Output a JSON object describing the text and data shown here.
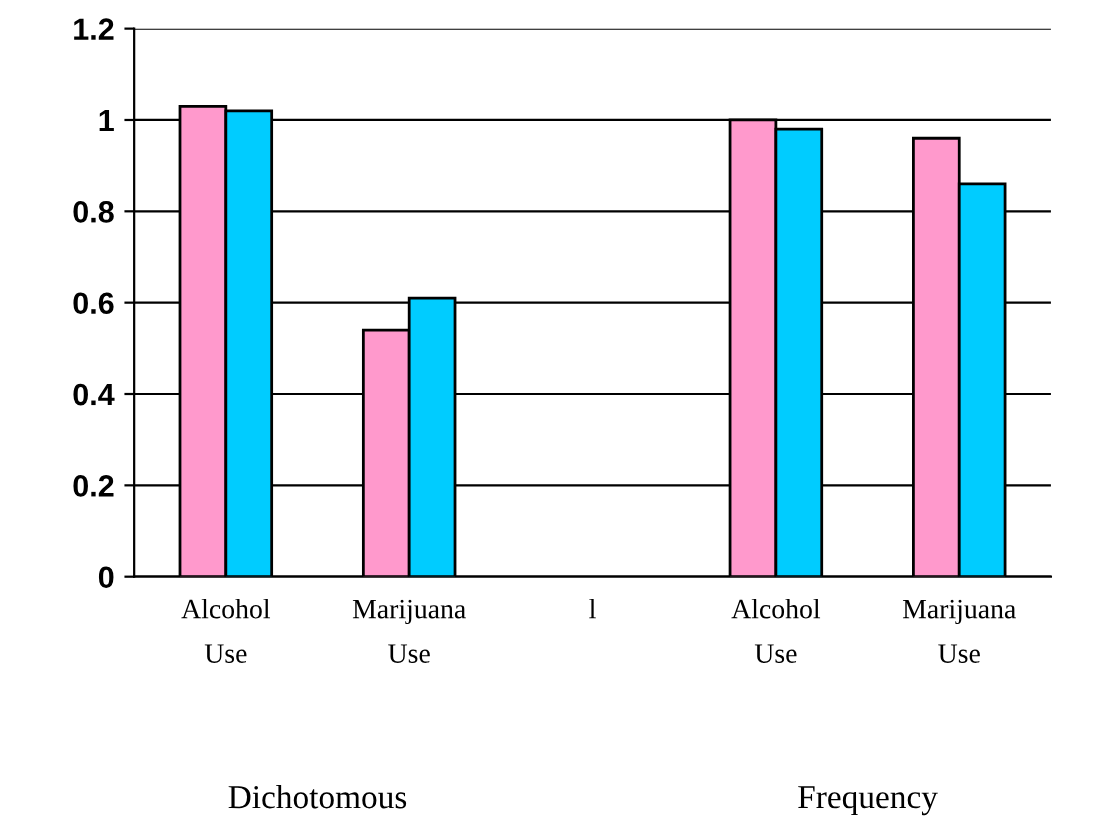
{
  "chart_data": {
    "type": "bar",
    "categories": [
      "Alcohol\nUse",
      "Marijuana\nUse",
      "l",
      "Alcohol\nUse",
      "Marijuana\nUse"
    ],
    "series": [
      {
        "color": "#ff99cc",
        "values": [
          1.03,
          0.54,
          null,
          1.0,
          0.96
        ]
      },
      {
        "color": "#00ccff",
        "values": [
          1.02,
          0.61,
          null,
          0.98,
          0.86
        ]
      }
    ],
    "ylim": [
      0,
      1.2
    ],
    "yticks": [
      0,
      0.2,
      0.4,
      0.6,
      0.8,
      1,
      1.2
    ],
    "grid": "y",
    "annotations": [
      "Dichotomous",
      "Frequency"
    ]
  }
}
